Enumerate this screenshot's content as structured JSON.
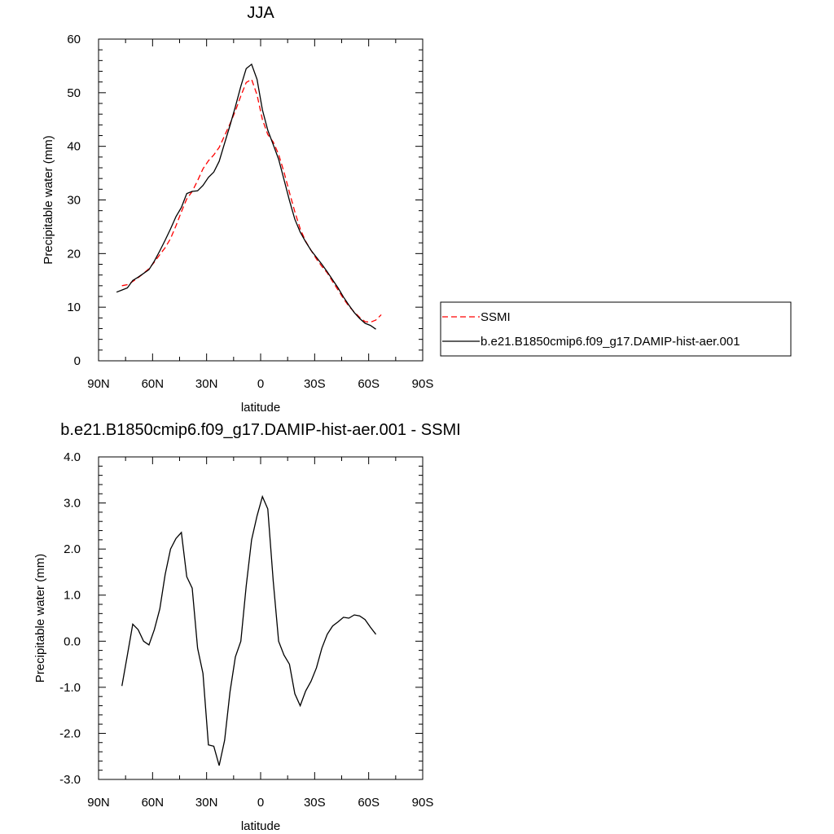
{
  "chart_data": [
    {
      "type": "line",
      "title": "JJA",
      "xlabel": "latitude",
      "ylabel": "Precipitable water (mm)",
      "xlim": [
        90,
        -90
      ],
      "ylim": [
        0,
        60
      ],
      "x_ticks": [
        90,
        60,
        30,
        0,
        -30,
        -60,
        -90
      ],
      "x_tick_labels": [
        "90N",
        "60N",
        "30N",
        "0",
        "30S",
        "60S",
        "90S"
      ],
      "y_ticks": [
        0,
        10,
        20,
        30,
        40,
        50,
        60
      ],
      "y_tick_labels": [
        "0",
        "10",
        "20",
        "30",
        "40",
        "50",
        "60"
      ],
      "grid": false,
      "legend": "right",
      "series": [
        {
          "name": "SSMI",
          "color": "#ff0000",
          "style": "dashed",
          "x": [
            77,
            74,
            71,
            68,
            65,
            62,
            59,
            56,
            53,
            50,
            47,
            44,
            41,
            38,
            35,
            32,
            29,
            26,
            23,
            20,
            17,
            14,
            11,
            8,
            5,
            2,
            -1,
            -4,
            -7,
            -10,
            -13,
            -16,
            -19,
            -22,
            -25,
            -28,
            -31,
            -34,
            -37,
            -40,
            -43,
            -46,
            -49,
            -52,
            -55,
            -58,
            -61,
            -64,
            -67
          ],
          "y": [
            14.0,
            14.2,
            14.8,
            15.5,
            16.3,
            17.2,
            18.4,
            19.8,
            21.1,
            22.8,
            25.2,
            27.8,
            30.2,
            31.6,
            33.6,
            35.8,
            37.3,
            38.4,
            39.8,
            42.0,
            44.2,
            46.6,
            49.4,
            51.9,
            52.5,
            49.6,
            45.0,
            42.2,
            40.8,
            38.5,
            35.2,
            31.4,
            27.8,
            24.6,
            22.3,
            20.6,
            19.0,
            17.6,
            16.4,
            14.8,
            13.2,
            11.6,
            10.2,
            9.1,
            8.1,
            7.3,
            7.2,
            7.6,
            8.6
          ]
        },
        {
          "name": "b.e21.B1850cmip6.f09_g17.DAMIP-hist-aer.001",
          "color": "#000000",
          "style": "solid",
          "x": [
            80,
            77,
            74,
            71,
            68,
            65,
            62,
            59,
            56,
            53,
            50,
            47,
            44,
            41,
            38,
            35,
            32,
            29,
            26,
            23,
            20,
            17,
            14,
            11,
            8,
            5,
            2,
            -1,
            -4,
            -7,
            -10,
            -13,
            -16,
            -19,
            -22,
            -25,
            -28,
            -31,
            -34,
            -37,
            -40,
            -43,
            -46,
            -49,
            -52,
            -55,
            -58,
            -61,
            -64
          ],
          "y": [
            12.8,
            13.2,
            13.6,
            15.0,
            15.6,
            16.3,
            17.0,
            18.6,
            20.5,
            22.5,
            24.6,
            26.9,
            28.6,
            31.2,
            31.6,
            31.7,
            32.7,
            34.2,
            35.2,
            37.2,
            40.6,
            43.9,
            47.4,
            51.2,
            54.5,
            55.3,
            52.5,
            46.8,
            43.0,
            40.3,
            37.6,
            33.8,
            29.9,
            26.4,
            24.0,
            22.2,
            20.6,
            19.3,
            18.0,
            16.6,
            15.1,
            13.6,
            11.9,
            10.4,
            9.0,
            7.9,
            7.0,
            6.6,
            5.9
          ]
        }
      ]
    },
    {
      "type": "line",
      "title": "b.e21.B1850cmip6.f09_g17.DAMIP-hist-aer.001 - SSMI",
      "xlabel": "latitude",
      "ylabel": "Precipitable water (mm)",
      "xlim": [
        90,
        -90
      ],
      "ylim": [
        -3.0,
        4.0
      ],
      "x_ticks": [
        90,
        60,
        30,
        0,
        -30,
        -60,
        -90
      ],
      "x_tick_labels": [
        "90N",
        "60N",
        "30N",
        "0",
        "30S",
        "60S",
        "90S"
      ],
      "y_ticks": [
        -3.0,
        -2.0,
        -1.0,
        0.0,
        1.0,
        2.0,
        3.0,
        4.0
      ],
      "y_tick_labels": [
        "-3.0",
        "-2.0",
        "-1.0",
        "0.0",
        "1.0",
        "2.0",
        "3.0",
        "4.0"
      ],
      "grid": false,
      "series": [
        {
          "color": "#000000",
          "style": "solid",
          "x": [
            77,
            74,
            71,
            68,
            65,
            62,
            59,
            56,
            53,
            50,
            47,
            44,
            41,
            38,
            35,
            32,
            29,
            26,
            23,
            20,
            17,
            14,
            11,
            8,
            5,
            2,
            -1,
            -4,
            -7,
            -10,
            -13,
            -16,
            -19,
            -22,
            -25,
            -28,
            -31,
            -34,
            -37,
            -40,
            -43,
            -46,
            -49,
            -52,
            -55,
            -58,
            -61,
            -64
          ],
          "y": [
            -0.97,
            -0.3,
            0.37,
            0.25,
            0.0,
            -0.08,
            0.25,
            0.7,
            1.45,
            2.0,
            2.23,
            2.36,
            1.4,
            1.15,
            -0.15,
            -0.7,
            -2.25,
            -2.28,
            -2.7,
            -2.15,
            -1.1,
            -0.34,
            0.0,
            1.2,
            2.2,
            2.72,
            3.14,
            2.87,
            1.3,
            0.0,
            -0.3,
            -0.5,
            -1.14,
            -1.4,
            -1.08,
            -0.87,
            -0.58,
            -0.15,
            0.15,
            0.33,
            0.42,
            0.52,
            0.5,
            0.57,
            0.55,
            0.47,
            0.3,
            0.15
          ]
        }
      ]
    }
  ]
}
